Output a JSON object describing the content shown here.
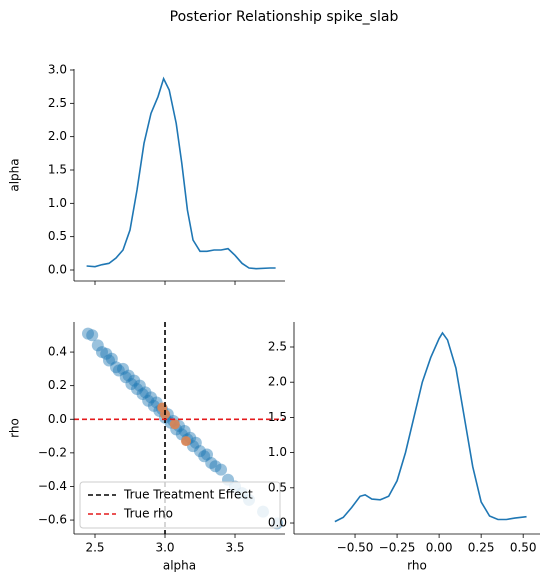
{
  "title": "Posterior Relationship spike_slab",
  "chart_data": [
    {
      "type": "line",
      "ylabel": "alpha",
      "x": [
        2.44,
        2.5,
        2.55,
        2.6,
        2.65,
        2.7,
        2.75,
        2.8,
        2.85,
        2.9,
        2.95,
        2.99,
        3.03,
        3.08,
        3.12,
        3.16,
        3.2,
        3.25,
        3.3,
        3.35,
        3.4,
        3.45,
        3.5,
        3.55,
        3.6,
        3.65,
        3.75,
        3.79
      ],
      "series": [
        {
          "color": "#1f77b4",
          "values": [
            0.06,
            0.05,
            0.08,
            0.1,
            0.18,
            0.3,
            0.6,
            1.2,
            1.9,
            2.35,
            2.6,
            2.87,
            2.7,
            2.2,
            1.6,
            0.9,
            0.45,
            0.28,
            0.28,
            0.3,
            0.3,
            0.32,
            0.22,
            0.1,
            0.03,
            0.02,
            0.03,
            0.03
          ]
        }
      ],
      "xlim": [
        2.35,
        3.857
      ],
      "ylim": [
        -0.165,
        3.015
      ],
      "xticks": [
        2.5,
        3,
        3.5
      ],
      "yticks": [
        {
          "value": 0,
          "label": "0.0"
        },
        {
          "value": 0.5,
          "label": "0.5"
        },
        {
          "value": 1,
          "label": "1.0"
        },
        {
          "value": 1.5,
          "label": "1.5"
        },
        {
          "value": 2,
          "label": "2.0"
        },
        {
          "value": 2.5,
          "label": "2.5"
        },
        {
          "value": 3,
          "label": "3.0"
        }
      ]
    },
    {
      "type": "scatter",
      "xlabel": "alpha",
      "ylabel": "rho",
      "series": [
        {
          "color": "#1f77b4",
          "x": [
            2.45,
            2.48,
            2.52,
            2.55,
            2.58,
            2.6,
            2.62,
            2.65,
            2.67,
            2.7,
            2.72,
            2.74,
            2.76,
            2.78,
            2.8,
            2.82,
            2.84,
            2.86,
            2.88,
            2.9,
            2.92,
            2.94,
            2.96,
            2.98,
            3.0,
            3.02,
            3.04,
            3.06,
            3.08,
            3.1,
            3.12,
            3.14,
            3.16,
            3.18,
            3.2,
            3.22,
            3.25,
            3.28,
            3.3,
            3.33,
            3.36,
            3.4,
            3.45,
            3.5,
            3.55,
            3.6,
            3.7,
            3.8
          ],
          "values": [
            0.51,
            0.5,
            0.44,
            0.4,
            0.39,
            0.35,
            0.36,
            0.31,
            0.29,
            0.3,
            0.25,
            0.26,
            0.21,
            0.23,
            0.18,
            0.2,
            0.15,
            0.16,
            0.11,
            0.13,
            0.08,
            0.1,
            0.05,
            0.06,
            0.01,
            0.03,
            -0.02,
            -0.01,
            -0.06,
            -0.04,
            -0.09,
            -0.07,
            -0.12,
            -0.11,
            -0.16,
            -0.14,
            -0.19,
            -0.22,
            -0.21,
            -0.26,
            -0.28,
            -0.3,
            -0.36,
            -0.4,
            -0.44,
            -0.48,
            -0.55,
            -0.62
          ]
        },
        {
          "color": "#dd8452",
          "x": [
            2.98,
            3.0,
            3.07,
            3.15
          ],
          "values": [
            0.07,
            0.03,
            -0.03,
            -0.13
          ]
        }
      ],
      "reference_lines": [
        {
          "name": "True Treatment Effect",
          "color": "#000000",
          "axis": "x",
          "value": 3.0
        },
        {
          "name": "True rho",
          "color": "#e41a1c",
          "axis": "y",
          "value": 0
        }
      ],
      "legend": "lower left",
      "xlim": [
        2.35,
        3.857
      ],
      "ylim": [
        -0.683,
        0.579
      ],
      "xticks": [
        {
          "value": 2.5,
          "label": "2.5"
        },
        {
          "value": 3,
          "label": "3.0"
        },
        {
          "value": 3.5,
          "label": "3.5"
        }
      ],
      "yticks": [
        {
          "value": -0.6,
          "label": "−0.6"
        },
        {
          "value": -0.4,
          "label": "−0.4"
        },
        {
          "value": -0.2,
          "label": "−0.2"
        },
        {
          "value": 0,
          "label": "0.0"
        },
        {
          "value": 0.2,
          "label": "0.2"
        },
        {
          "value": 0.4,
          "label": "0.4"
        }
      ]
    },
    {
      "type": "line",
      "xlabel": "rho",
      "x": [
        -0.62,
        -0.57,
        -0.52,
        -0.47,
        -0.44,
        -0.4,
        -0.35,
        -0.3,
        -0.25,
        -0.2,
        -0.15,
        -0.1,
        -0.05,
        0,
        0.02,
        0.05,
        0.1,
        0.15,
        0.2,
        0.25,
        0.3,
        0.35,
        0.4,
        0.45,
        0.52
      ],
      "series": [
        {
          "color": "#1f77b4",
          "values": [
            0.02,
            0.08,
            0.22,
            0.38,
            0.4,
            0.34,
            0.33,
            0.38,
            0.6,
            1.0,
            1.5,
            2.0,
            2.35,
            2.62,
            2.7,
            2.6,
            2.2,
            1.5,
            0.8,
            0.3,
            0.1,
            0.05,
            0.05,
            0.07,
            0.09
          ]
        }
      ],
      "xlim": [
        -0.863,
        0.6
      ],
      "ylim": [
        -0.156,
        2.855
      ],
      "xticks": [
        {
          "value": -0.5,
          "label": "−0.50"
        },
        {
          "value": -0.25,
          "label": "−0.25"
        },
        {
          "value": 0,
          "label": "0.00"
        },
        {
          "value": 0.25,
          "label": "0.25"
        },
        {
          "value": 0.5,
          "label": "0.50"
        }
      ],
      "yticks": [
        {
          "value": 0,
          "label": "0.0"
        },
        {
          "value": 0.5,
          "label": "0.5"
        },
        {
          "value": 1,
          "label": "1.0"
        },
        {
          "value": 1.5,
          "label": "1.5"
        },
        {
          "value": 2,
          "label": "2.0"
        },
        {
          "value": 2.5,
          "label": "2.5"
        }
      ]
    }
  ]
}
